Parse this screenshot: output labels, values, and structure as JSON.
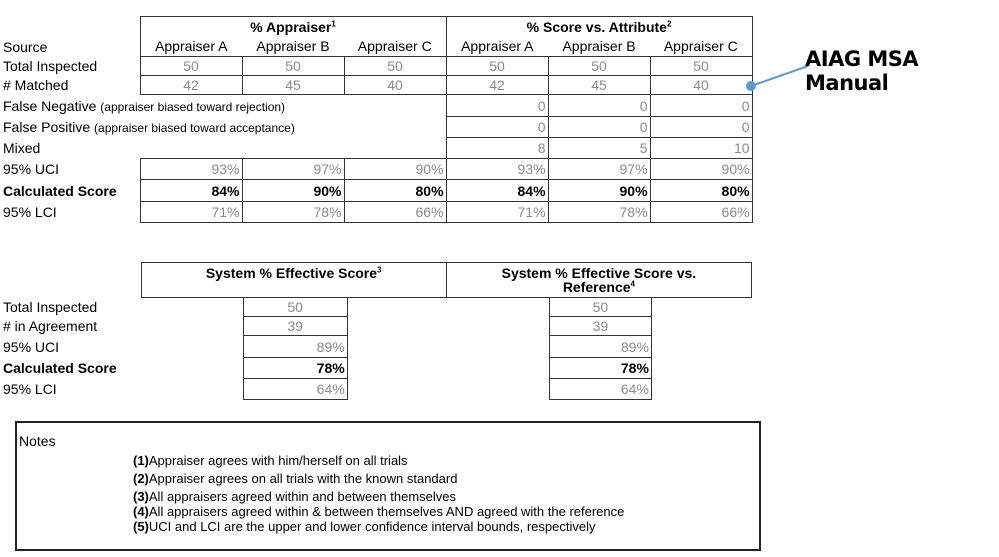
{
  "top_table": {
    "group_headers": [
      {
        "label": "% Appraiser",
        "sup": "1"
      },
      {
        "label": "% Score vs. Attribute",
        "sup": "2"
      }
    ],
    "source_label": "Source",
    "columns": [
      "Appraiser A",
      "Appraiser B",
      "Appraiser C",
      "Appraiser A",
      "Appraiser B",
      "Appraiser C"
    ],
    "rows": [
      {
        "label": "Total Inspected",
        "note": "",
        "values": [
          "50",
          "50",
          "50",
          "50",
          "50",
          "50"
        ],
        "style": "count"
      },
      {
        "label": "# Matched",
        "note": "",
        "values": [
          "42",
          "45",
          "40",
          "42",
          "45",
          "40"
        ],
        "style": "count"
      },
      {
        "label": "False Negative",
        "note": "(appraiser biased toward rejection)",
        "values": [
          "",
          "",
          "",
          "0",
          "0",
          "0"
        ],
        "style": "attr"
      },
      {
        "label": "False Positive",
        "note": "(appraiser biased toward acceptance)",
        "values": [
          "",
          "",
          "",
          "0",
          "0",
          "0"
        ],
        "style": "attr"
      },
      {
        "label": "Mixed",
        "note": "",
        "values": [
          "",
          "",
          "",
          "8",
          "5",
          "10"
        ],
        "style": "attr"
      },
      {
        "label": "95% UCI",
        "note": "",
        "values": [
          "93%",
          "97%",
          "90%",
          "93%",
          "97%",
          "90%"
        ],
        "style": "pct"
      },
      {
        "label": "Calculated Score",
        "note": "",
        "values": [
          "84%",
          "90%",
          "80%",
          "84%",
          "90%",
          "80%"
        ],
        "style": "score"
      },
      {
        "label": "95% LCI",
        "note": "",
        "values": [
          "71%",
          "78%",
          "66%",
          "71%",
          "78%",
          "66%"
        ],
        "style": "pct"
      }
    ]
  },
  "callout": {
    "label": "AIAG MSA Manual",
    "color": "#5b9bd5"
  },
  "system_table": {
    "headers": [
      {
        "label": "System % Effective Score",
        "sup": "3"
      },
      {
        "label": "System % Effective Score vs. Reference",
        "sup": "4"
      }
    ],
    "rows": [
      {
        "label": "Total Inspected",
        "values": [
          "50",
          "50"
        ],
        "style": "count"
      },
      {
        "label": "# in Agreement",
        "values": [
          "39",
          "39"
        ],
        "style": "count"
      },
      {
        "label": "95% UCI",
        "values": [
          "89%",
          "89%"
        ],
        "style": "pct"
      },
      {
        "label": "Calculated Score",
        "values": [
          "78%",
          "78%"
        ],
        "style": "score"
      },
      {
        "label": "95% LCI",
        "values": [
          "64%",
          "64%"
        ],
        "style": "pct"
      }
    ]
  },
  "notes": {
    "title": "Notes",
    "items": [
      {
        "num": "(1)",
        "text": "Appraiser agrees with him/herself on all trials"
      },
      {
        "num": "(2)",
        "text": "Appraiser agrees on all trials with the known standard"
      },
      {
        "num": "(3)",
        "text": "All appraisers agreed within and between themselves"
      },
      {
        "num": "(4)",
        "text": "All appraisers agreed within & between themselves AND agreed with the reference"
      },
      {
        "num": "(5)",
        "text": "UCI and LCI are the upper and lower confidence interval bounds, respectively"
      }
    ]
  }
}
